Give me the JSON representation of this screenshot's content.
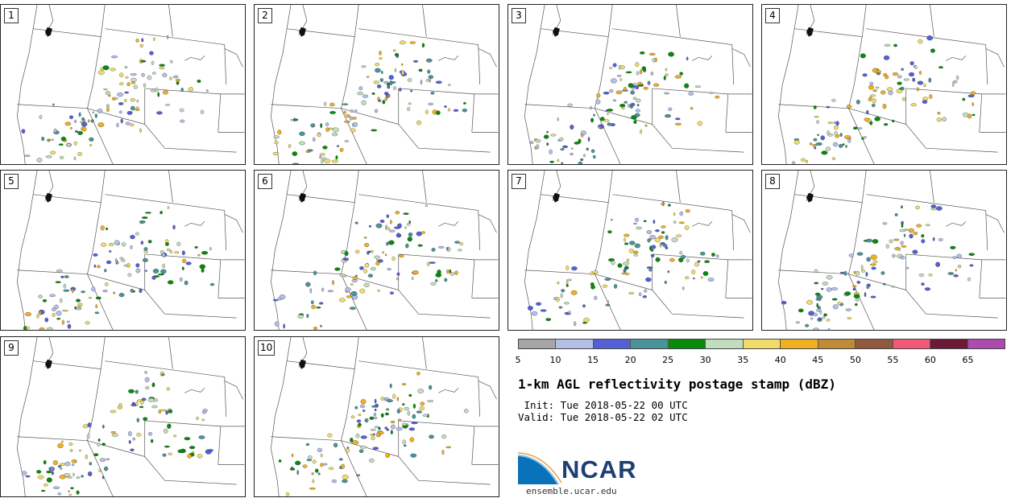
{
  "panels": [
    {
      "label": "1",
      "seed": 11
    },
    {
      "label": "2",
      "seed": 23
    },
    {
      "label": "3",
      "seed": 37
    },
    {
      "label": "4",
      "seed": 41
    },
    {
      "label": "5",
      "seed": 53
    },
    {
      "label": "6",
      "seed": 67
    },
    {
      "label": "7",
      "seed": 71
    },
    {
      "label": "8",
      "seed": 83
    },
    {
      "label": "9",
      "seed": 97
    },
    {
      "label": "10",
      "seed": 109
    }
  ],
  "colorbar": {
    "ticks": [
      "5",
      "10",
      "15",
      "20",
      "25",
      "30",
      "35",
      "40",
      "45",
      "50",
      "55",
      "60",
      "65"
    ],
    "colors": [
      "#a6a6a6",
      "#b4bfe8",
      "#5560d6",
      "#4a9398",
      "#0a8a0a",
      "#c2dcc0",
      "#f0dc6a",
      "#f0b020",
      "#c08a38",
      "#915a3e",
      "#f25878",
      "#6a1a36",
      "#ac4cac"
    ]
  },
  "title": "1-km AGL reflectivity postage stamp (dBZ)",
  "init": " Init: Tue 2018-05-22 00 UTC",
  "valid": "Valid: Tue 2018-05-22 02 UTC",
  "logo": {
    "text": "NCAR",
    "site": "ensemble.ucar.edu",
    "blue": "#0a72b8"
  }
}
